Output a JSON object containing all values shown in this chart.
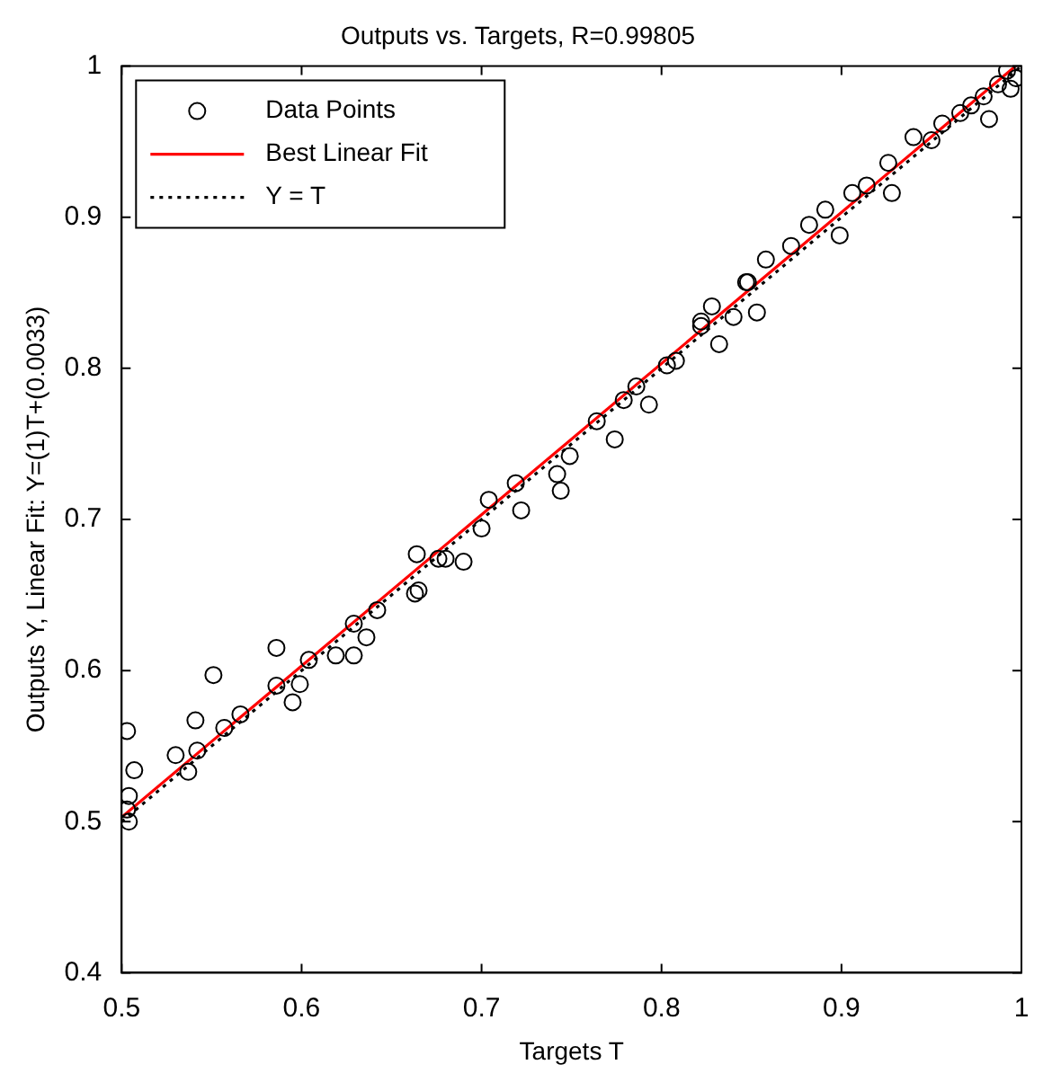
{
  "chart_data": {
    "type": "scatter",
    "title": "Outputs vs. Targets, R=0.99805",
    "xlabel": "Targets T",
    "ylabel": "Outputs Y, Linear Fit: Y=(1)T+(0.0033)",
    "xlim": [
      0.5,
      1
    ],
    "xticks": [
      0.5,
      0.6,
      0.7,
      0.8,
      0.9,
      1
    ],
    "ylim": [
      0.4,
      1
    ],
    "yticks": [
      0.4,
      0.5,
      0.6,
      0.7,
      0.8,
      0.9,
      1
    ],
    "legend": "top left",
    "series": [
      {
        "name": "Data Points",
        "type": "scatter",
        "color": "#000000",
        "marker": "circle",
        "x": [
          0.503,
          0.507,
          0.504,
          0.504,
          0.503,
          0.53,
          0.537,
          0.542,
          0.541,
          0.551,
          0.557,
          0.566,
          0.586,
          0.586,
          0.595,
          0.599,
          0.604,
          0.619,
          0.629,
          0.629,
          0.636,
          0.642,
          0.663,
          0.664,
          0.68,
          0.665,
          0.69,
          0.676,
          0.7,
          0.704,
          0.722,
          0.719,
          0.744,
          0.742,
          0.749,
          0.764,
          0.774,
          0.779,
          0.793,
          0.786,
          0.803,
          0.808,
          0.822,
          0.832,
          0.828,
          0.84,
          0.848,
          0.822,
          0.853,
          0.847,
          0.858,
          0.872,
          0.882,
          0.899,
          0.891,
          0.906,
          0.914,
          0.928,
          0.926,
          0.94,
          0.95,
          0.956,
          0.966,
          0.972,
          0.979,
          0.982,
          0.987,
          0.992,
          0.997,
          0.994
        ],
        "values": [
          0.56,
          0.534,
          0.517,
          0.5,
          0.508,
          0.544,
          0.533,
          0.547,
          0.567,
          0.597,
          0.562,
          0.571,
          0.615,
          0.59,
          0.579,
          0.591,
          0.607,
          0.61,
          0.61,
          0.631,
          0.622,
          0.64,
          0.651,
          0.677,
          0.674,
          0.653,
          0.672,
          0.674,
          0.694,
          0.713,
          0.706,
          0.724,
          0.719,
          0.73,
          0.742,
          0.765,
          0.753,
          0.779,
          0.776,
          0.788,
          0.802,
          0.805,
          0.828,
          0.816,
          0.841,
          0.834,
          0.857,
          0.831,
          0.837,
          0.857,
          0.872,
          0.881,
          0.895,
          0.888,
          0.905,
          0.916,
          0.921,
          0.916,
          0.936,
          0.953,
          0.951,
          0.962,
          0.969,
          0.974,
          0.98,
          0.965,
          0.988,
          0.997,
          0.992,
          0.985
        ]
      },
      {
        "name": "Best Linear Fit",
        "type": "line",
        "color": "#ff0000",
        "line_style": "solid",
        "marker": "none",
        "x": [
          0.5,
          0.9967
        ],
        "values": [
          0.503,
          1.0
        ]
      },
      {
        "name": "Y = T",
        "type": "line",
        "color": "#000000",
        "line_style": "dotted",
        "marker": "none",
        "x": [
          0.5,
          1
        ],
        "values": [
          0.5,
          1
        ]
      }
    ]
  }
}
